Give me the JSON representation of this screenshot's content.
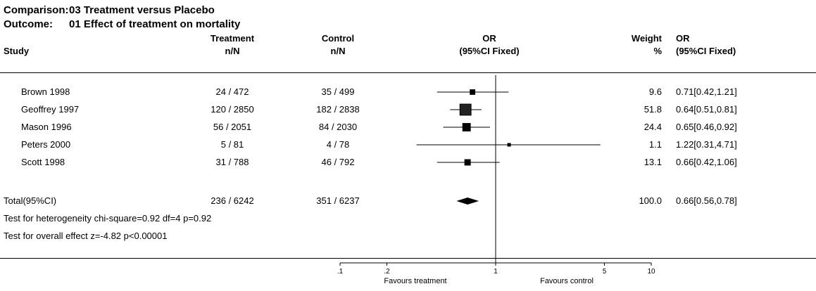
{
  "header": {
    "comparison_label": "Comparison:",
    "comparison_value": "03 Treatment versus Placebo",
    "outcome_label": "Outcome:",
    "outcome_value": "01 Effect of treatment on mortality"
  },
  "columns": {
    "study": "Study",
    "treatment": [
      "Treatment",
      "n/N"
    ],
    "control": [
      "Control",
      "n/N"
    ],
    "or_plot": [
      "OR",
      "(95%CI Fixed)"
    ],
    "weight": [
      "Weight",
      "%"
    ],
    "or_text": [
      "OR",
      "(95%CI Fixed)"
    ]
  },
  "rows": [
    {
      "study": "Brown 1998",
      "treatment": "24 / 472",
      "control": "35 / 499",
      "weight": "9.6",
      "or_text": "0.71[0.42,1.21]"
    },
    {
      "study": "Geoffrey 1997",
      "treatment": "120 / 2850",
      "control": "182 / 2838",
      "weight": "51.8",
      "or_text": "0.64[0.51,0.81]"
    },
    {
      "study": "Mason 1996",
      "treatment": "56 / 2051",
      "control": "84 / 2030",
      "weight": "24.4",
      "or_text": "0.65[0.46,0.92]"
    },
    {
      "study": "Peters 2000",
      "treatment": "5 / 81",
      "control": "4 / 78",
      "weight": "1.1",
      "or_text": "1.22[0.31,4.71]"
    },
    {
      "study": "Scott 1998",
      "treatment": "31 / 788",
      "control": "46 / 792",
      "weight": "13.1",
      "or_text": "0.66[0.42,1.06]"
    }
  ],
  "total": {
    "study": "Total(95%CI)",
    "treatment": "236 / 6242",
    "control": "351 / 6237",
    "weight": "100.0",
    "or_text": "0.66[0.56,0.78]"
  },
  "notes": {
    "heterogeneity": "Test for heterogeneity chi-square=0.92  df=4  p=0.92",
    "overall": "Test for overall effect  z=-4.82  p<0.00001"
  },
  "axis": {
    "ticks": [
      0.1,
      0.2,
      1,
      5,
      10
    ],
    "tick_labels": [
      ".1",
      ".2",
      "1",
      "5",
      "10"
    ],
    "favours_left": "Favours treatment",
    "favours_right": "Favours control"
  },
  "chart_data": {
    "type": "forest",
    "scale": "log",
    "xlim": [
      0.1,
      10
    ],
    "reference_line": 1,
    "studies": [
      {
        "name": "Brown 1998",
        "or": 0.71,
        "ci": [
          0.42,
          1.21
        ],
        "weight": 9.6
      },
      {
        "name": "Geoffrey 1997",
        "or": 0.64,
        "ci": [
          0.51,
          0.81
        ],
        "weight": 51.8
      },
      {
        "name": "Mason 1996",
        "or": 0.65,
        "ci": [
          0.46,
          0.92
        ],
        "weight": 24.4
      },
      {
        "name": "Peters 2000",
        "or": 1.22,
        "ci": [
          0.31,
          4.71
        ],
        "weight": 1.1
      },
      {
        "name": "Scott 1998",
        "or": 0.66,
        "ci": [
          0.42,
          1.06
        ],
        "weight": 13.1
      }
    ],
    "total": {
      "or": 0.66,
      "ci": [
        0.56,
        0.78
      ]
    }
  }
}
